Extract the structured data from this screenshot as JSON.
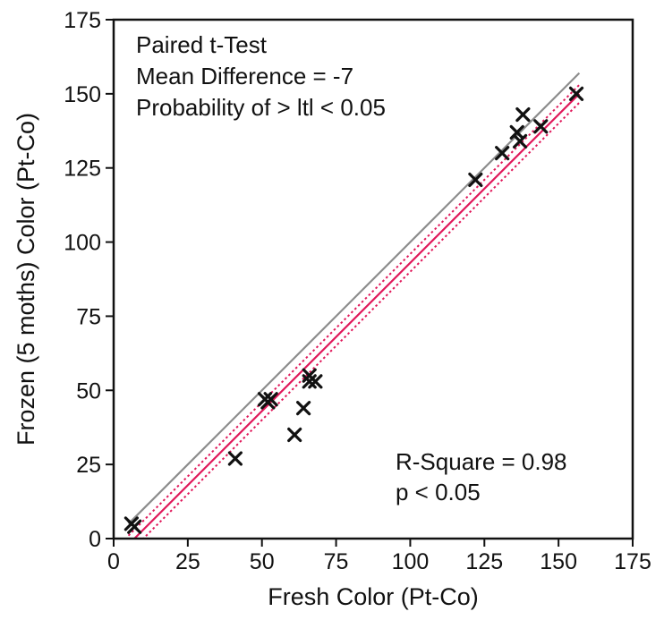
{
  "chart_data": {
    "type": "scatter",
    "xlabel": "Fresh Color (Pt-Co)",
    "ylabel": "Frozen (5 moths) Color (Pt-Co)",
    "xlim": [
      0,
      175
    ],
    "ylim": [
      0,
      175
    ],
    "xticks": [
      "0",
      "25",
      "50",
      "75",
      "100",
      "125",
      "150",
      "175"
    ],
    "yticks": [
      "0",
      "25",
      "50",
      "75",
      "100",
      "125",
      "150",
      "175"
    ],
    "grid": false,
    "marker": "x",
    "points": [
      {
        "x": 6,
        "y": 5
      },
      {
        "x": 7,
        "y": 4
      },
      {
        "x": 41,
        "y": 27
      },
      {
        "x": 51,
        "y": 47
      },
      {
        "x": 52,
        "y": 46
      },
      {
        "x": 53,
        "y": 47
      },
      {
        "x": 61,
        "y": 35
      },
      {
        "x": 64,
        "y": 44
      },
      {
        "x": 66,
        "y": 55
      },
      {
        "x": 66,
        "y": 53
      },
      {
        "x": 68,
        "y": 53
      },
      {
        "x": 122,
        "y": 121
      },
      {
        "x": 131,
        "y": 130
      },
      {
        "x": 136,
        "y": 137
      },
      {
        "x": 137,
        "y": 134
      },
      {
        "x": 138,
        "y": 143
      },
      {
        "x": 144,
        "y": 139
      },
      {
        "x": 156,
        "y": 150
      }
    ],
    "lines": [
      {
        "type": "identity",
        "color": "#8c8c8c",
        "style": "solid",
        "x": [
          5,
          157
        ],
        "y": [
          5,
          157
        ]
      },
      {
        "type": "fit",
        "color": "#e0185a",
        "style": "solid",
        "x": [
          5,
          157
        ],
        "y": [
          -2,
          150
        ]
      },
      {
        "type": "confidence-upper",
        "color": "#e0185a",
        "style": "dotted",
        "x": [
          5,
          157
        ],
        "y": [
          1,
          153
        ]
      },
      {
        "type": "confidence-lower",
        "color": "#e0185a",
        "style": "dotted",
        "x": [
          5,
          157
        ],
        "y": [
          -5,
          147
        ]
      }
    ],
    "annotations": {
      "test_title": "Paired t-Test",
      "mean_difference": "Mean Difference = -7",
      "probability": "Probability of > ltl < 0.05",
      "r_square": "R-Square = 0.98",
      "p_value": "p < 0.05"
    }
  }
}
